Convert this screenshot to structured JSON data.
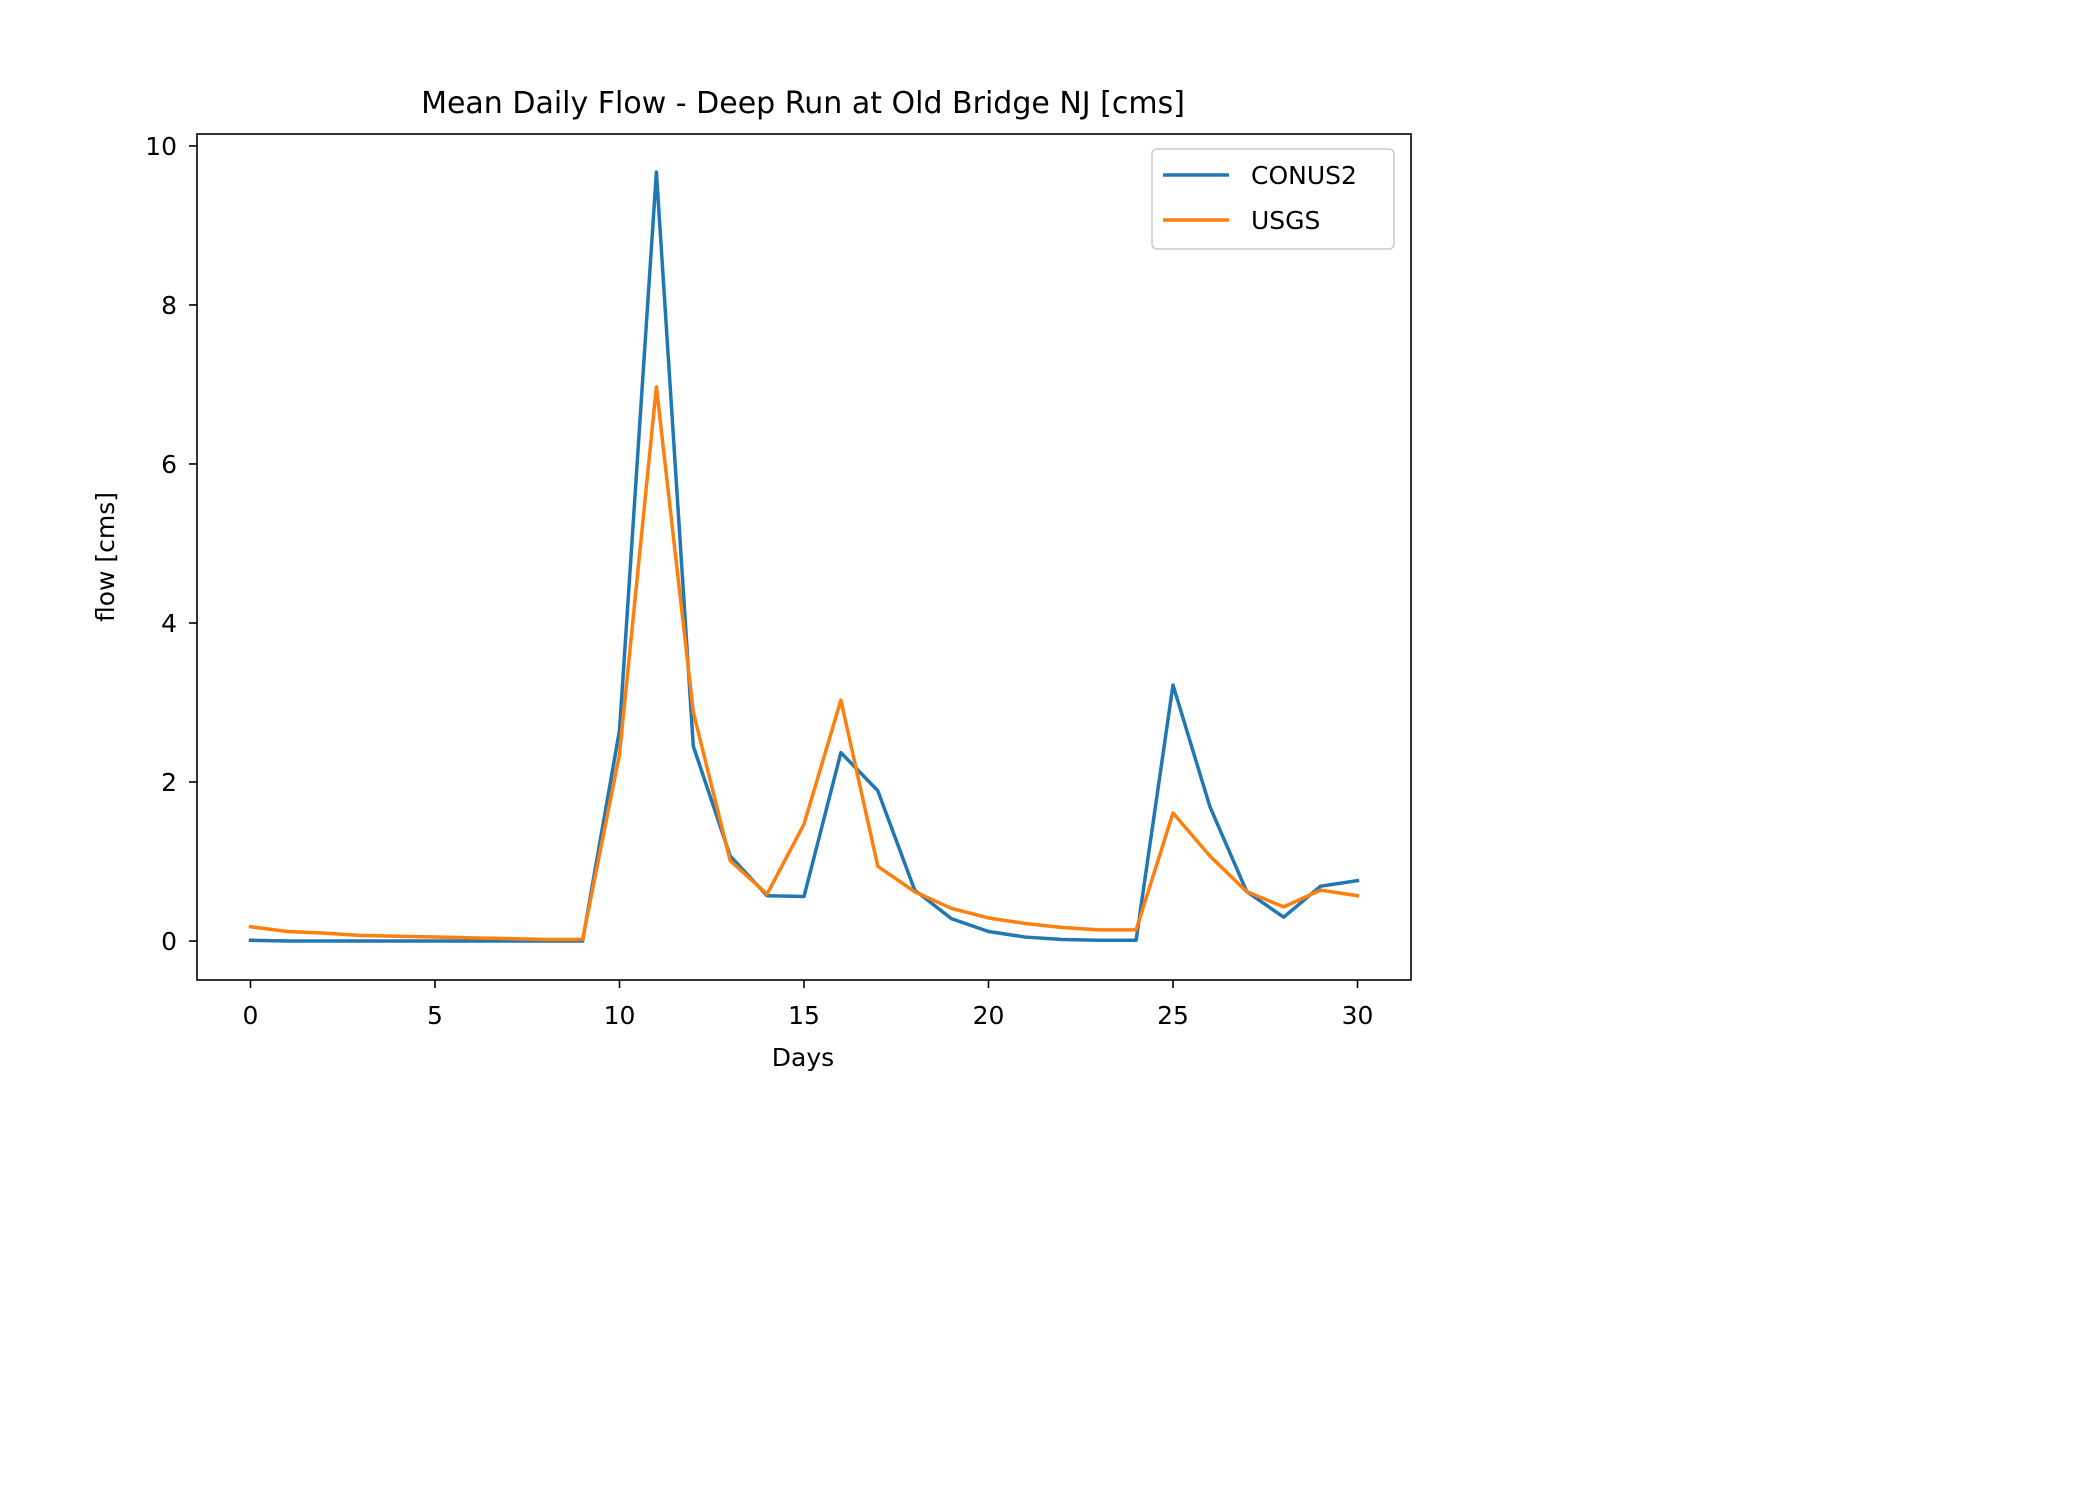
{
  "chart_data": {
    "type": "line",
    "title": "Mean Daily Flow - Deep Run at Old Bridge NJ [cms]",
    "xlabel": "Days",
    "ylabel": "flow [cms]",
    "xlim": [
      -1.45,
      31.45
    ],
    "ylim": [
      -0.49,
      10.15
    ],
    "xticks": [
      0,
      5,
      10,
      15,
      20,
      25,
      30
    ],
    "yticks": [
      0,
      2,
      4,
      6,
      8,
      10
    ],
    "grid": false,
    "legend_position": "upper right",
    "x": [
      0,
      1,
      2,
      3,
      4,
      5,
      6,
      7,
      8,
      9,
      10,
      11,
      12,
      13,
      14,
      15,
      16,
      17,
      18,
      19,
      20,
      21,
      22,
      23,
      24,
      25,
      26,
      27,
      28,
      29,
      30
    ],
    "series": [
      {
        "name": "CONUS2",
        "color": "#1f77b4",
        "values": [
          0.01,
          0.0,
          0.0,
          0.0,
          0.0,
          0.0,
          0.0,
          0.0,
          0.0,
          0.0,
          2.65,
          9.67,
          2.45,
          1.07,
          0.57,
          0.56,
          2.37,
          1.89,
          0.64,
          0.28,
          0.12,
          0.05,
          0.02,
          0.01,
          0.01,
          3.22,
          1.69,
          0.62,
          0.3,
          0.69,
          0.76
        ]
      },
      {
        "name": "USGS",
        "color": "#ff7f0e",
        "values": [
          0.18,
          0.12,
          0.1,
          0.07,
          0.06,
          0.05,
          0.04,
          0.03,
          0.02,
          0.02,
          2.35,
          6.97,
          2.88,
          1.01,
          0.59,
          1.47,
          3.03,
          0.94,
          0.62,
          0.41,
          0.29,
          0.22,
          0.17,
          0.14,
          0.14,
          1.61,
          1.07,
          0.62,
          0.43,
          0.64,
          0.57
        ]
      }
    ]
  }
}
